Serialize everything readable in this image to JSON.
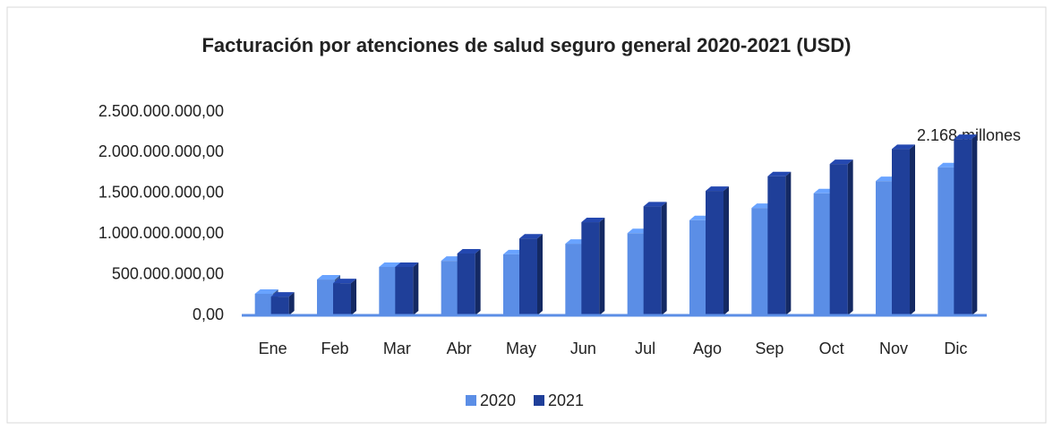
{
  "chart_data": {
    "type": "bar3d",
    "title": "Facturación  por atenciones de salud seguro general 2020-2021 (USD)",
    "categories": [
      "Ene",
      "Feb",
      "Mar",
      "Abr",
      "May",
      "Jun",
      "Jul",
      "Ago",
      "Sep",
      "Oct",
      "Nov",
      "Dic"
    ],
    "series": [
      {
        "name": "2020",
        "color": "#5b8ee6",
        "values": [
          265000000,
          440000000,
          595000000,
          670000000,
          750000000,
          880000000,
          1010000000,
          1170000000,
          1320000000,
          1500000000,
          1650000000,
          1820000000
        ]
      },
      {
        "name": "2021",
        "color": "#1f3f99",
        "values": [
          230000000,
          395000000,
          595000000,
          760000000,
          945000000,
          1145000000,
          1340000000,
          1530000000,
          1710000000,
          1860000000,
          2045000000,
          2168000000
        ]
      }
    ],
    "ylim": [
      0,
      2500000000
    ],
    "yticks": [
      {
        "value": 0,
        "label": "0,00"
      },
      {
        "value": 500000000,
        "label": "500.000.000,00"
      },
      {
        "value": 1000000000,
        "label": "1.000.000.000,00"
      },
      {
        "value": 1500000000,
        "label": "1.500.000.000,00"
      },
      {
        "value": 2000000000,
        "label": "2.000.000.000,00"
      },
      {
        "value": 2500000000,
        "label": "2.500.000.000,00"
      }
    ],
    "annotation": "2.168 millones",
    "legend": "bottom"
  }
}
